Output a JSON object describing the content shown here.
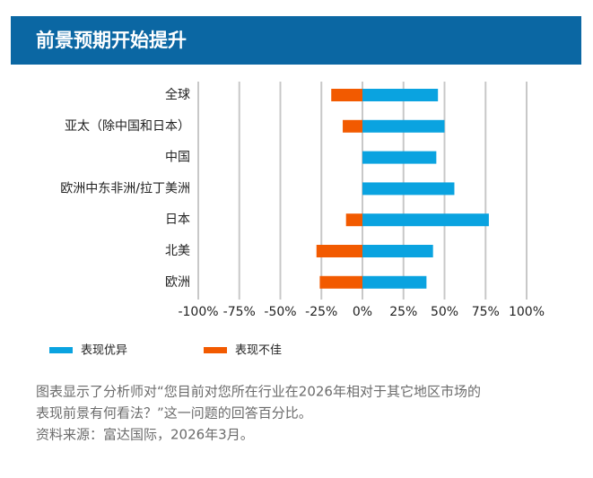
{
  "chart_data": {
    "type": "diverging-bar",
    "title": "前景预期开始提升",
    "categories": [
      "全球",
      "亚太（除中国和日本）",
      "中国",
      "欧洲中东非洲/拉丁美洲",
      "日本",
      "北美",
      "欧洲"
    ],
    "series": [
      {
        "name": "表现优异",
        "color": "#0aa3e0",
        "values": [
          46,
          50,
          45,
          56,
          77,
          43,
          39
        ]
      },
      {
        "name": "表现不佳",
        "color": "#f25a00",
        "values": [
          -19,
          -12,
          0,
          0,
          -10,
          -28,
          -26
        ]
      }
    ],
    "xlim": [
      -100,
      100
    ],
    "xticks": [
      {
        "value": -100,
        "label": "-100%"
      },
      {
        "value": -75,
        "label": "-75%"
      },
      {
        "value": -50,
        "label": "-50%"
      },
      {
        "value": -25,
        "label": "-25%"
      },
      {
        "value": 0,
        "label": "0%"
      },
      {
        "value": 25,
        "label": "25%"
      },
      {
        "value": 50,
        "label": "50%"
      },
      {
        "value": 75,
        "label": "75%"
      },
      {
        "value": 100,
        "label": "100%"
      }
    ],
    "grid": true,
    "notes": [
      "图表显示了分析师对“您目前对您所在行业在2026年相对于其它地区市场的",
      "表现前景有何看法？”这一问题的回答百分比。",
      "资料来源：富达国际，2026年3月。"
    ]
  }
}
